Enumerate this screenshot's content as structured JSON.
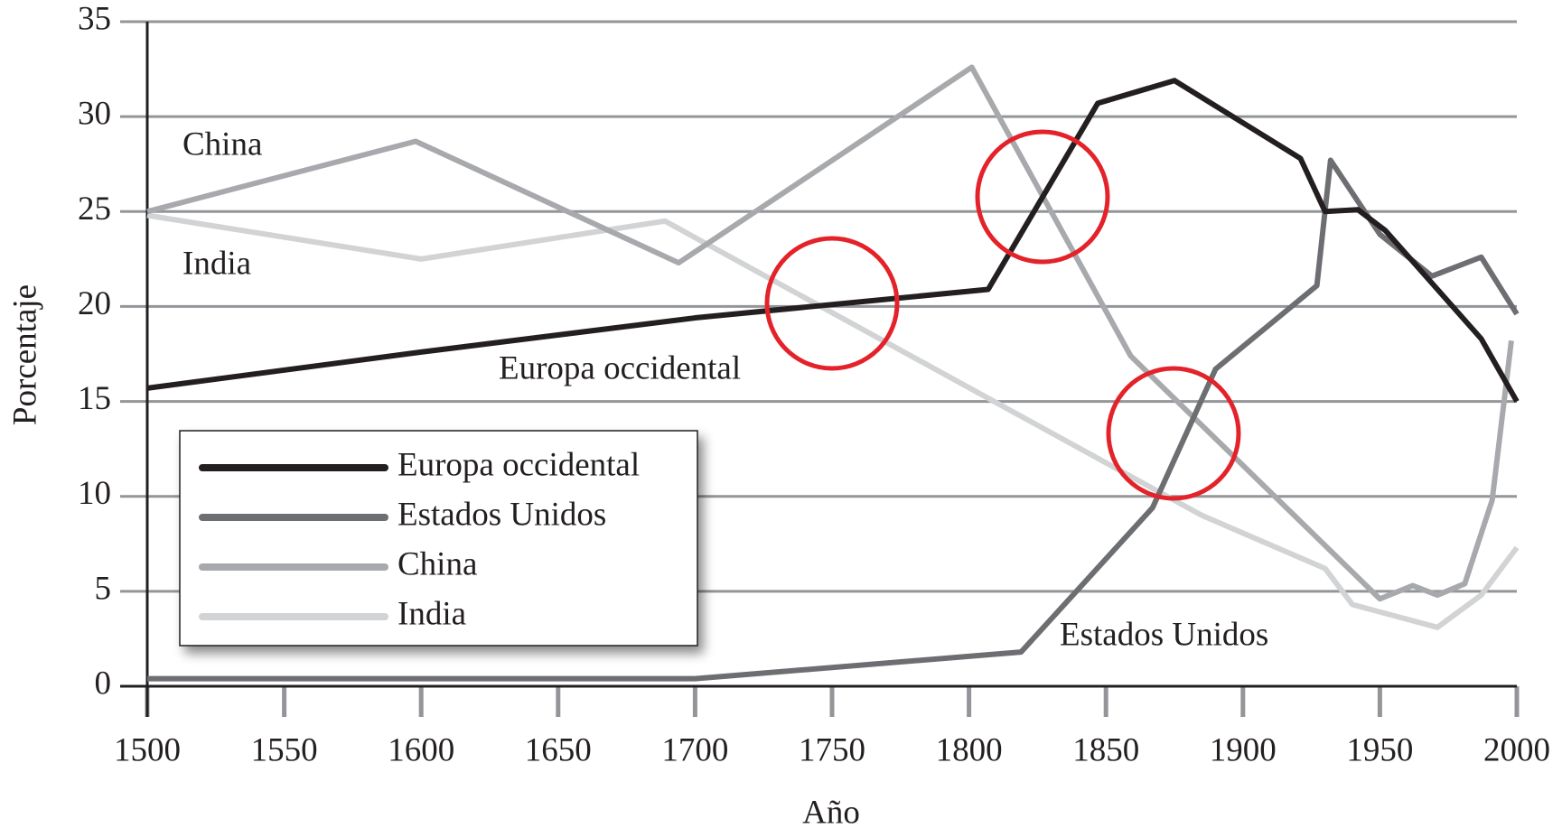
{
  "chart_data": {
    "type": "line",
    "xlabel": "Año",
    "ylabel": "Porcentaje",
    "xlim": [
      1500,
      2000
    ],
    "xticks": [
      1500,
      1550,
      1600,
      1650,
      1700,
      1750,
      1800,
      1850,
      1900,
      1950,
      2000
    ],
    "ylim": [
      0,
      35
    ],
    "yticks": [
      0,
      5,
      10,
      15,
      20,
      25,
      30,
      35
    ],
    "grid": true,
    "legend": "upper left",
    "annotations": [
      "China",
      "India",
      "Europa occidental",
      "Estados Unidos"
    ],
    "series": [
      {
        "name": "Europa occidental",
        "color": "#231f20",
        "x": [
          1500,
          1600,
          1700,
          1807,
          1847,
          1875,
          1921,
          1930,
          1942,
          1952,
          1987,
          2000
        ],
        "values": [
          15.7,
          17.6,
          19.4,
          20.9,
          30.7,
          31.9,
          27.8,
          25.0,
          25.1,
          24.0,
          18.3,
          15.0
        ]
      },
      {
        "name": "Estados Unidos",
        "color": "#6d6e71",
        "x": [
          1500,
          1700,
          1819,
          1867,
          1890,
          1927,
          1932,
          1950,
          1969,
          1987,
          2000
        ],
        "values": [
          0.4,
          0.4,
          1.8,
          9.4,
          16.7,
          21.1,
          27.7,
          23.8,
          21.6,
          22.6,
          19.6
        ]
      },
      {
        "name": "China",
        "color": "#a7a9ac",
        "x": [
          1500,
          1598,
          1694,
          1801,
          1859,
          1950,
          1962,
          1971,
          1981,
          1991,
          1998
        ],
        "values": [
          25.0,
          28.7,
          22.3,
          32.6,
          17.4,
          4.6,
          5.3,
          4.8,
          5.4,
          9.8,
          18.2
        ]
      },
      {
        "name": "India",
        "color": "#d1d3d4",
        "x": [
          1500,
          1600,
          1689,
          1885,
          1930,
          1940,
          1971,
          1987,
          2000
        ],
        "values": [
          24.8,
          22.5,
          24.5,
          9.0,
          6.2,
          4.3,
          3.1,
          4.8,
          7.3
        ]
      }
    ]
  }
}
